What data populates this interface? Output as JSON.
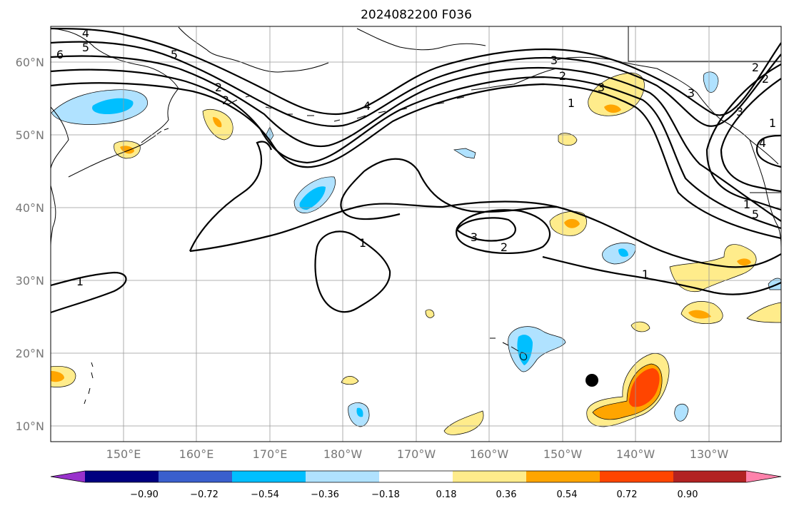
{
  "title": "2024082200 F036",
  "axes": {
    "lat_ticks": [
      "60°N",
      "50°N",
      "40°N",
      "30°N",
      "20°N",
      "10°N"
    ],
    "lon_ticks": [
      "150°E",
      "160°E",
      "170°E",
      "180°W",
      "170°W",
      "160°W",
      "150°W",
      "140°W",
      "130°W"
    ]
  },
  "colorbar": {
    "ticks": [
      "−0.90",
      "−0.72",
      "−0.54",
      "−0.36",
      "−0.18",
      "0.18",
      "0.36",
      "0.54",
      "0.72",
      "0.90"
    ],
    "colors": [
      "#9932cc",
      "#000080",
      "#3a5fcd",
      "#00bfff",
      "#b0e2ff",
      "#ffffff",
      "#ffec8b",
      "#ffa500",
      "#ff4500",
      "#b22222",
      "#ff82ab"
    ]
  },
  "contour_labels": [
    "4",
    "5",
    "6",
    "5",
    "2",
    "2",
    "4",
    "3",
    "2",
    "3",
    "1",
    "1",
    "2",
    "3",
    "1",
    "2",
    "1",
    "1",
    "3",
    "4",
    "5",
    "3",
    "2",
    "1"
  ],
  "storm_marker": "storm-center"
}
